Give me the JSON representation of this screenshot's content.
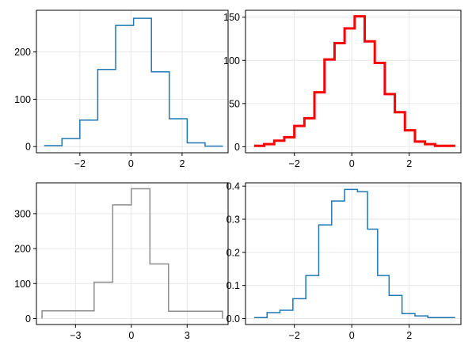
{
  "chart_data": [
    {
      "type": "histogram",
      "title": "",
      "xlabel": "",
      "ylabel": "",
      "xlim": [
        -3.7,
        3.8
      ],
      "ylim": [
        -13,
        288
      ],
      "xticks": [
        {
          "v": -2,
          "label": "−2"
        },
        {
          "v": 0,
          "label": "0"
        },
        {
          "v": 2,
          "label": "2"
        }
      ],
      "yticks": [
        {
          "v": 0,
          "label": "0"
        },
        {
          "v": 100,
          "label": "100"
        },
        {
          "v": 200,
          "label": "200"
        }
      ],
      "grid": true,
      "series": [
        {
          "color": "#1f77b4",
          "stroke_width": 1.5,
          "edges": [
            -3.4,
            -2.7,
            -2.0,
            -1.3,
            -0.6,
            0.1,
            0.8,
            1.5,
            2.2,
            2.9,
            3.6
          ],
          "counts": [
            2,
            17,
            56,
            163,
            256,
            271,
            158,
            59,
            8,
            1
          ]
        }
      ]
    },
    {
      "type": "histogram",
      "title": "",
      "xlabel": "",
      "ylabel": "",
      "xlim": [
        -3.7,
        3.8
      ],
      "ylim": [
        -7,
        158
      ],
      "xticks": [
        {
          "v": -2,
          "label": "−2"
        },
        {
          "v": 0,
          "label": "0"
        },
        {
          "v": 2,
          "label": "2"
        }
      ],
      "yticks": [
        {
          "v": 0,
          "label": "0"
        },
        {
          "v": 50,
          "label": "50"
        },
        {
          "v": 100,
          "label": "100"
        },
        {
          "v": 150,
          "label": "150"
        }
      ],
      "grid": true,
      "series": [
        {
          "color": "#ff0000",
          "stroke_width": 3,
          "edges": [
            -3.4,
            -3.05,
            -2.7,
            -2.35,
            -2.0,
            -1.65,
            -1.3,
            -0.95,
            -0.6,
            -0.25,
            0.1,
            0.45,
            0.8,
            1.15,
            1.5,
            1.85,
            2.2,
            2.55,
            2.9,
            3.25,
            3.6
          ],
          "counts": [
            1,
            3,
            7,
            11,
            24,
            33,
            63,
            101,
            120,
            137,
            151,
            122,
            97,
            61,
            40,
            19,
            6,
            3,
            1,
            1
          ]
        }
      ]
    },
    {
      "type": "histogram",
      "title": "",
      "xlabel": "",
      "ylabel": "",
      "xlim": [
        -5.1,
        5.2
      ],
      "ylim": [
        -17,
        388
      ],
      "xticks": [
        {
          "v": -3,
          "label": "−3"
        },
        {
          "v": 0,
          "label": "0"
        },
        {
          "v": 3,
          "label": "3"
        }
      ],
      "yticks": [
        {
          "v": 0,
          "label": "0"
        },
        {
          "v": 100,
          "label": "100"
        },
        {
          "v": 200,
          "label": "200"
        },
        {
          "v": 300,
          "label": "300"
        }
      ],
      "grid": true,
      "series": [
        {
          "color": "#8c8c8c",
          "stroke_width": 1.5,
          "drop_to_zero": true,
          "edges": [
            -4.8,
            -2.0,
            -1.0,
            0.0,
            1.0,
            2.0,
            4.9
          ],
          "counts": [
            22,
            104,
            325,
            371,
            156,
            21
          ]
        }
      ]
    },
    {
      "type": "histogram",
      "title": "",
      "xlabel": "",
      "ylabel": "",
      "xlim": [
        -3.7,
        3.8
      ],
      "ylim": [
        -0.018,
        0.41
      ],
      "xticks": [
        {
          "v": -2,
          "label": "−2"
        },
        {
          "v": 0,
          "label": "0"
        },
        {
          "v": 2,
          "label": "2"
        }
      ],
      "yticks": [
        {
          "v": 0,
          "label": "0.0"
        },
        {
          "v": 0.1,
          "label": "0.1"
        },
        {
          "v": 0.2,
          "label": "0.2"
        },
        {
          "v": 0.3,
          "label": "0.3"
        },
        {
          "v": 0.4,
          "label": "0.4"
        }
      ],
      "grid": true,
      "series": [
        {
          "color": "#1f77b4",
          "stroke_width": 1.5,
          "edges": [
            -3.4,
            -2.95,
            -2.5,
            -2.05,
            -1.6,
            -1.15,
            -0.7,
            -0.25,
            0.2,
            0.55,
            0.9,
            1.3,
            1.75,
            2.2,
            2.65,
            3.1,
            3.6
          ],
          "counts": [
            0.003,
            0.018,
            0.025,
            0.06,
            0.13,
            0.283,
            0.355,
            0.39,
            0.383,
            0.27,
            0.13,
            0.07,
            0.015,
            0.008,
            0.003,
            0.003
          ]
        }
      ]
    }
  ]
}
